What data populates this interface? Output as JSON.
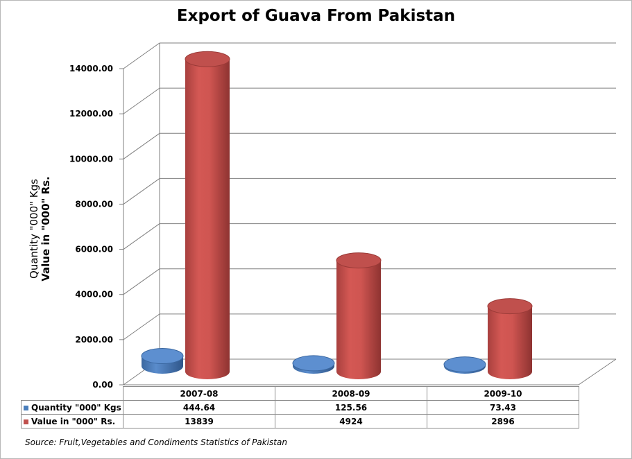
{
  "chart_data": {
    "type": "bar",
    "title": "Export of Guava From Pakistan",
    "ylabel_lines": [
      "Quantity \"000\" Kgs",
      "Value in \"000\" Rs."
    ],
    "categories": [
      "2007-08",
      "2008-09",
      "2009-10"
    ],
    "series": [
      {
        "name": "Quantity \"000\" Kgs",
        "values": [
          444.64,
          125.56,
          73.43
        ],
        "labels": [
          "444.64",
          "125.56",
          "73.43"
        ],
        "color": "#4a7ebb"
      },
      {
        "name": "Value in \"000\" Rs.",
        "values": [
          13839,
          4924,
          2896
        ],
        "labels": [
          "13839",
          "4924",
          "2896"
        ],
        "color": "#c0504d"
      }
    ],
    "ylim": [
      0,
      14000
    ],
    "yticks": [
      "0.00",
      "2000.00",
      "4000.00",
      "6000.00",
      "8000.00",
      "10000.00",
      "12000.00",
      "14000.00"
    ],
    "style": "3d-cylinder",
    "grid": true,
    "legend": "data-table"
  },
  "source": "Source: Fruit,Vegetables and Condiments Statistics of Pakistan"
}
